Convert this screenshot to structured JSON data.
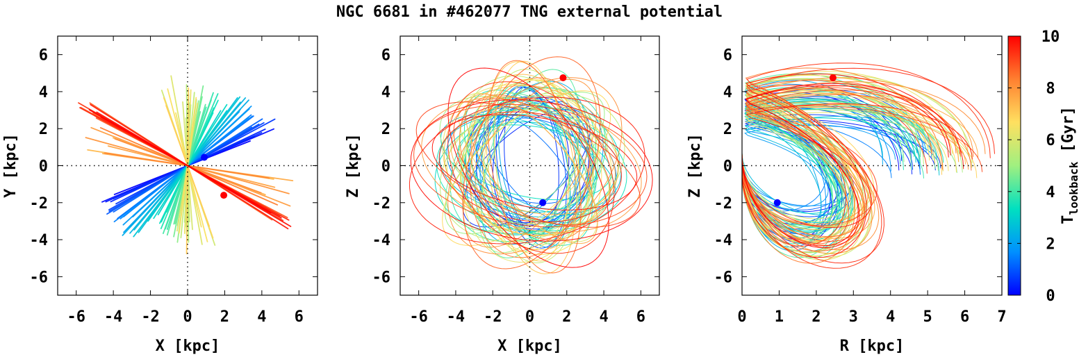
{
  "figure": {
    "title": "NGC 6681 in #462077 TNG external potential"
  },
  "chart_data": [
    {
      "type": "line",
      "panel": "xy",
      "xlabel": "X [kpc]",
      "ylabel": "Y [kpc]",
      "xlim": [
        -7,
        7
      ],
      "ylim": [
        -7,
        7
      ],
      "xticks": [
        -6,
        -4,
        -2,
        0,
        2,
        4,
        6
      ],
      "yticks": [
        -6,
        -4,
        -2,
        0,
        2,
        4,
        6
      ],
      "zero_lines": true,
      "markers": [
        {
          "name": "present",
          "x": 0.9,
          "y": 0.45,
          "color": "#0000ff"
        },
        {
          "name": "past",
          "x": 1.95,
          "y": -1.6,
          "color": "#ff0000"
        }
      ]
    },
    {
      "type": "line",
      "panel": "xz",
      "xlabel": "X [kpc]",
      "ylabel": "Z [kpc]",
      "xlim": [
        -7,
        7
      ],
      "ylim": [
        -7,
        7
      ],
      "xticks": [
        -6,
        -4,
        -2,
        0,
        2,
        4,
        6
      ],
      "yticks": [
        -6,
        -4,
        -2,
        0,
        2,
        4,
        6
      ],
      "zero_lines": true,
      "markers": [
        {
          "name": "present",
          "x": 0.7,
          "y": -2.0,
          "color": "#0000ff"
        },
        {
          "name": "past",
          "x": 1.8,
          "y": 4.75,
          "color": "#ff0000"
        }
      ]
    },
    {
      "type": "line",
      "panel": "rz",
      "xlabel": "R [kpc]",
      "ylabel": "Z [kpc]",
      "xlim": [
        0,
        7
      ],
      "ylim": [
        -7,
        7
      ],
      "xticks": [
        0,
        1,
        2,
        3,
        4,
        5,
        6,
        7
      ],
      "yticks": [
        -6,
        -4,
        -2,
        0,
        2,
        4,
        6
      ],
      "zero_lines": true,
      "markers": [
        {
          "name": "present",
          "x": 0.95,
          "y": -2.0,
          "color": "#0000ff"
        },
        {
          "name": "past",
          "x": 2.45,
          "y": 4.75,
          "color": "#ff0000"
        }
      ]
    }
  ],
  "colorbar": {
    "label_main": "T",
    "label_sub": "lookback",
    "label_unit": " [Gyr]",
    "range": [
      0,
      10
    ],
    "ticks": [
      0,
      2,
      4,
      6,
      8,
      10
    ],
    "colors": [
      "#0000ff",
      "#0090ff",
      "#00e0c0",
      "#a0f080",
      "#ffe060",
      "#ff8030",
      "#ff0000"
    ]
  }
}
